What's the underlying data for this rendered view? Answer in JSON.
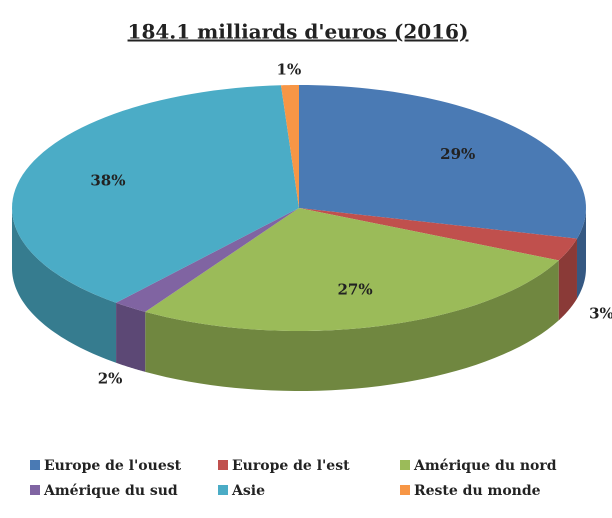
{
  "chart_data": {
    "type": "pie",
    "title": "184.1 milliards d'euros (2016)",
    "categories": [
      "Europe de l'ouest",
      "Europe de l'est",
      "Amérique du nord",
      "Amérique du sud",
      "Asie",
      "Reste du monde"
    ],
    "values": [
      29,
      3,
      27,
      2,
      38,
      1
    ],
    "value_labels": [
      "29%",
      "3%",
      "27%",
      "2%",
      "38%",
      "1%"
    ],
    "colors": [
      "#4a7ab4",
      "#c0504d",
      "#9bbb59",
      "#8064a2",
      "#4bacc6",
      "#f79646"
    ],
    "legend": "bottom"
  }
}
